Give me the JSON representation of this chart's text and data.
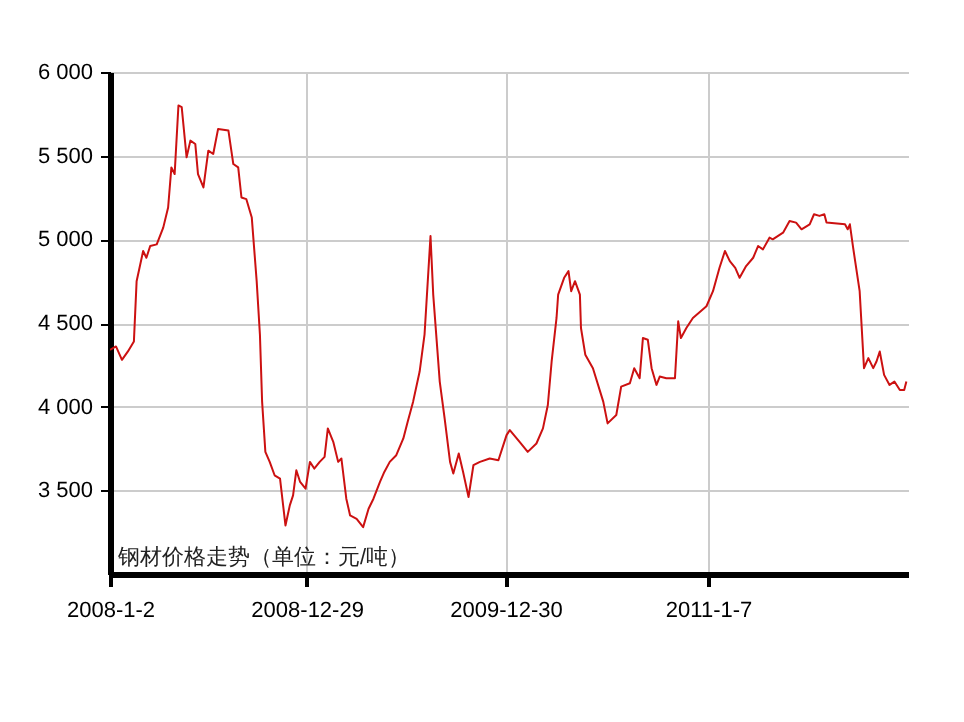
{
  "chart_data": {
    "type": "line",
    "annotations": [
      "钢材价格走势（单位：元/吨）"
    ],
    "x": [
      "2008-01-02",
      "2008-01-13",
      "2008-01-24",
      "2008-02-04",
      "2008-02-15",
      "2008-02-20",
      "2008-03-03",
      "2008-03-09",
      "2008-03-16",
      "2008-03-28",
      "2008-04-09",
      "2008-04-18",
      "2008-04-24",
      "2008-04-30",
      "2008-05-07",
      "2008-05-13",
      "2008-05-22",
      "2008-05-29",
      "2008-06-07",
      "2008-06-12",
      "2008-06-22",
      "2008-07-01",
      "2008-07-10",
      "2008-07-19",
      "2008-08-07",
      "2008-08-16",
      "2008-08-25",
      "2008-08-31",
      "2008-09-09",
      "2008-09-19",
      "2008-09-28",
      "2008-10-04",
      "2008-10-08",
      "2008-10-14",
      "2008-10-22",
      "2008-10-31",
      "2008-11-10",
      "2008-11-20",
      "2008-11-28",
      "2008-12-04",
      "2008-12-10",
      "2008-12-17",
      "2008-12-27",
      "2009-01-04",
      "2009-01-12",
      "2009-01-22",
      "2009-01-31",
      "2009-02-06",
      "2009-02-16",
      "2009-02-25",
      "2009-03-03",
      "2009-03-12",
      "2009-03-19",
      "2009-03-31",
      "2009-04-12",
      "2009-04-22",
      "2009-05-01",
      "2009-05-13",
      "2009-05-21",
      "2009-05-31",
      "2009-06-12",
      "2009-06-25",
      "2009-07-03",
      "2009-07-13",
      "2009-07-25",
      "2009-08-03",
      "2009-08-14",
      "2009-08-19",
      "2009-08-31",
      "2009-09-09",
      "2009-09-19",
      "2009-09-25",
      "2009-10-05",
      "2009-10-13",
      "2009-10-23",
      "2009-11-01",
      "2009-11-13",
      "2009-12-01",
      "2009-12-17",
      "2010-01-01",
      "2010-01-07",
      "2010-01-25",
      "2010-02-09",
      "2010-02-25",
      "2010-03-09",
      "2010-03-18",
      "2010-03-25",
      "2010-04-03",
      "2010-04-06",
      "2010-04-17",
      "2010-04-25",
      "2010-04-30",
      "2010-05-07",
      "2010-05-16",
      "2010-05-18",
      "2010-05-26",
      "2010-06-09",
      "2010-06-28",
      "2010-07-06",
      "2010-07-22",
      "2010-07-31",
      "2010-08-16",
      "2010-08-24",
      "2010-09-03",
      "2010-09-09",
      "2010-09-18",
      "2010-09-25",
      "2010-10-04",
      "2010-10-10",
      "2010-10-22",
      "2010-11-07",
      "2010-11-13",
      "2010-11-18",
      "2010-11-28",
      "2010-12-10",
      "2011-01-04",
      "2011-01-16",
      "2011-01-28",
      "2011-02-07",
      "2011-02-16",
      "2011-02-26",
      "2011-03-06",
      "2011-03-18",
      "2011-03-31",
      "2011-04-09",
      "2011-04-18",
      "2011-04-30",
      "2011-05-06",
      "2011-05-25",
      "2011-06-06",
      "2011-06-18",
      "2011-06-28",
      "2011-07-13",
      "2011-07-21",
      "2011-07-31",
      "2011-08-09",
      "2011-08-13",
      "2011-09-16",
      "2011-09-21",
      "2011-09-25",
      "2011-10-01",
      "2011-10-13",
      "2011-10-21",
      "2011-10-29",
      "2011-11-07",
      "2011-11-13",
      "2011-11-19",
      "2011-11-27",
      "2011-12-07",
      "2011-12-16",
      "2011-12-26",
      "2012-01-03",
      "2012-01-07"
    ],
    "series": [
      {
        "color": "#cc1111",
        "values": [
          4340,
          4360,
          4280,
          4330,
          4390,
          4750,
          4930,
          4890,
          4960,
          4970,
          5070,
          5190,
          5430,
          5390,
          5800,
          5790,
          5490,
          5590,
          5570,
          5390,
          5310,
          5530,
          5510,
          5660,
          5650,
          5450,
          5430,
          5250,
          5240,
          5130,
          4750,
          4430,
          4030,
          3730,
          3670,
          3590,
          3570,
          3290,
          3410,
          3470,
          3620,
          3550,
          3510,
          3670,
          3630,
          3670,
          3700,
          3870,
          3790,
          3670,
          3690,
          3450,
          3350,
          3330,
          3280,
          3390,
          3450,
          3550,
          3610,
          3670,
          3710,
          3810,
          3910,
          4030,
          4210,
          4430,
          5020,
          4670,
          4150,
          3930,
          3670,
          3600,
          3720,
          3610,
          3460,
          3650,
          3670,
          3690,
          3680,
          3830,
          3860,
          3790,
          3730,
          3780,
          3870,
          4010,
          4270,
          4530,
          4670,
          4770,
          4810,
          4690,
          4750,
          4670,
          4470,
          4310,
          4230,
          4030,
          3900,
          3950,
          4120,
          4140,
          4230,
          4170,
          4410,
          4400,
          4230,
          4130,
          4180,
          4170,
          4170,
          4510,
          4410,
          4470,
          4530,
          4600,
          4690,
          4830,
          4930,
          4870,
          4830,
          4770,
          4840,
          4890,
          4960,
          4940,
          5010,
          5000,
          5040,
          5110,
          5100,
          5060,
          5090,
          5150,
          5140,
          5150,
          5100,
          5090,
          5060,
          5090,
          4950,
          4690,
          4230,
          4290,
          4230,
          4270,
          4330,
          4190,
          4130,
          4150,
          4100,
          4100,
          4150
        ]
      }
    ],
    "xlim": [
      "2008-01-02",
      "2012-01-10"
    ],
    "xticks": [
      {
        "value": "2008-01-02",
        "label": "2008-1-2"
      },
      {
        "value": "2008-12-29",
        "label": "2008-12-29"
      },
      {
        "value": "2009-12-30",
        "label": "2009-12-30"
      },
      {
        "value": "2011-01-07",
        "label": "2011-1-7"
      }
    ],
    "ylim": [
      3000,
      6000
    ],
    "yticks": [
      {
        "value": 3500,
        "label": "3 500"
      },
      {
        "value": 4000,
        "label": "4 000"
      },
      {
        "value": 4500,
        "label": "4 500"
      },
      {
        "value": 5000,
        "label": "5 000"
      },
      {
        "value": 5500,
        "label": "5 500"
      },
      {
        "value": 6000,
        "label": "6 000"
      }
    ],
    "grid": true,
    "line_style": "solid",
    "marker": "none"
  }
}
